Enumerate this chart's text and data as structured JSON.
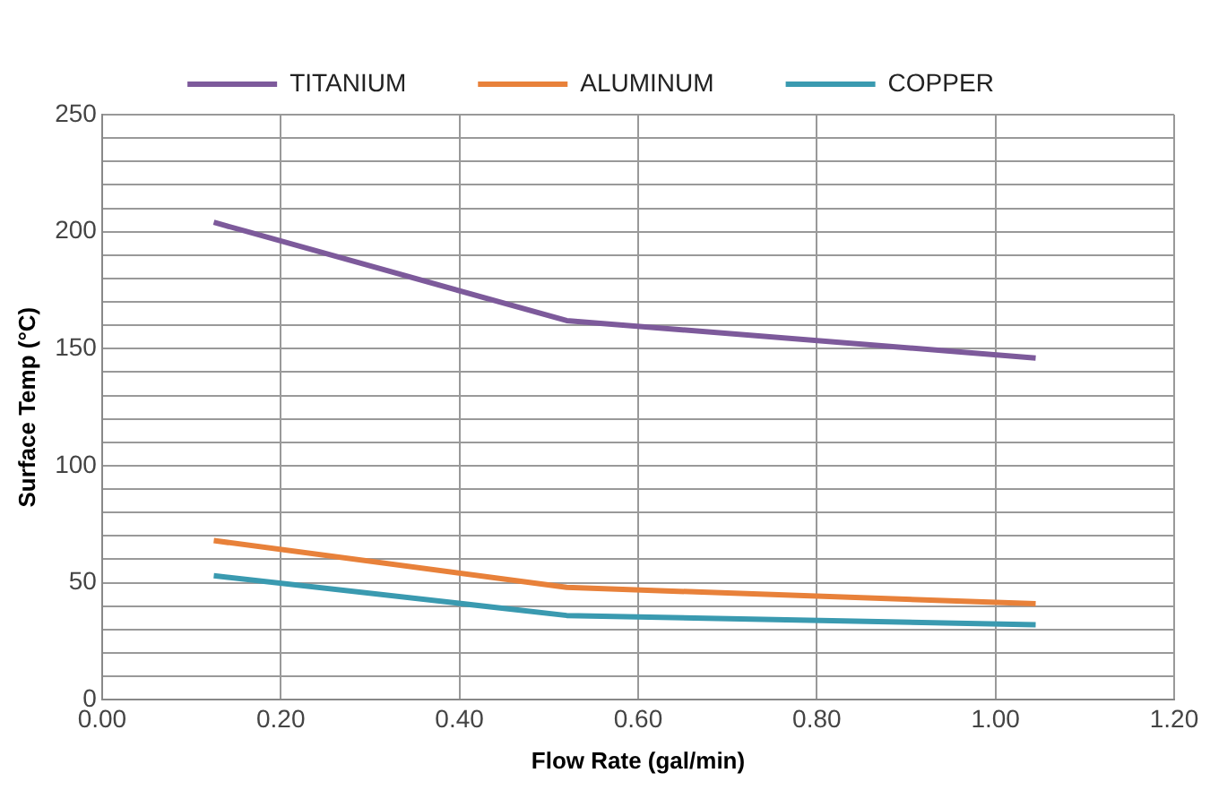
{
  "chart_data": {
    "type": "line",
    "xlabel": "Flow Rate (gal/min)",
    "ylabel": "Surface Temp (°C)",
    "x": [
      0.125,
      0.52,
      1.045
    ],
    "series": [
      {
        "name": "TITANIUM",
        "color": "#7d5a9b",
        "values": [
          204,
          162,
          146
        ]
      },
      {
        "name": "ALUMINUM",
        "color": "#e8813a",
        "values": [
          68,
          48,
          41
        ]
      },
      {
        "name": "COPPER",
        "color": "#3a9ab0",
        "values": [
          53,
          36,
          32
        ]
      }
    ],
    "xlim": [
      0,
      1.2
    ],
    "xticks": [
      {
        "value": 0,
        "label": "0.00"
      },
      {
        "value": 0.2,
        "label": "0.20"
      },
      {
        "value": 0.4,
        "label": "0.40"
      },
      {
        "value": 0.6,
        "label": "0.60"
      },
      {
        "value": 0.8,
        "label": "0.80"
      },
      {
        "value": 1,
        "label": "1.00"
      },
      {
        "value": 1.2,
        "label": "1.20"
      }
    ],
    "ylim": [
      0,
      250
    ],
    "yticks": [
      0,
      {
        "value": 10,
        "label": null
      },
      {
        "value": 20,
        "label": null
      },
      {
        "value": 30,
        "label": null
      },
      {
        "value": 40,
        "label": null
      },
      50,
      {
        "value": 60,
        "label": null
      },
      {
        "value": 70,
        "label": null
      },
      {
        "value": 80,
        "label": null
      },
      {
        "value": 90,
        "label": null
      },
      100,
      {
        "value": 110,
        "label": null
      },
      {
        "value": 120,
        "label": null
      },
      {
        "value": 130,
        "label": null
      },
      {
        "value": 140,
        "label": null
      },
      150,
      {
        "value": 160,
        "label": null
      },
      {
        "value": 170,
        "label": null
      },
      {
        "value": 180,
        "label": null
      },
      {
        "value": 190,
        "label": null
      },
      200,
      {
        "value": 210,
        "label": null
      },
      {
        "value": 220,
        "label": null
      },
      {
        "value": 230,
        "label": null
      },
      {
        "value": 240,
        "label": null
      },
      250
    ],
    "grid": true,
    "legend": "top",
    "marker": "none",
    "line_style": "solid"
  }
}
